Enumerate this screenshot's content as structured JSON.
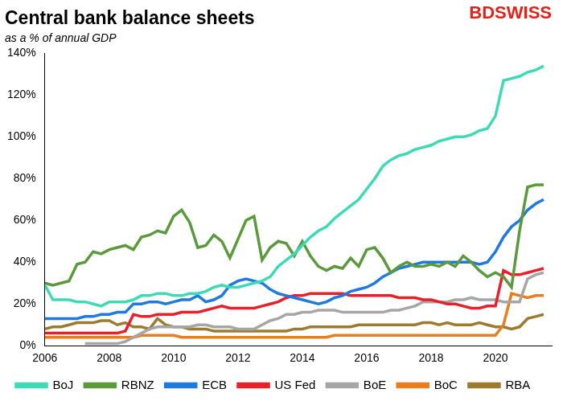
{
  "chart_data": {
    "type": "line",
    "title": "Central bank balance sheets",
    "subtitle": "as a % of annual GDP",
    "annotations": [
      "BDSWISS"
    ],
    "x": [
      2006,
      2006.25,
      2006.5,
      2006.75,
      2007,
      2007.25,
      2007.5,
      2007.75,
      2008,
      2008.25,
      2008.5,
      2008.75,
      2009,
      2009.25,
      2009.5,
      2009.75,
      2010,
      2010.25,
      2010.5,
      2010.75,
      2011,
      2011.25,
      2011.5,
      2011.75,
      2012,
      2012.25,
      2012.5,
      2012.75,
      2013,
      2013.25,
      2013.5,
      2013.75,
      2014,
      2014.25,
      2014.5,
      2014.75,
      2015,
      2015.25,
      2015.5,
      2015.75,
      2016,
      2016.25,
      2016.5,
      2016.75,
      2017,
      2017.25,
      2017.5,
      2017.75,
      2018,
      2018.25,
      2018.5,
      2018.75,
      2019,
      2019.25,
      2019.5,
      2019.75,
      2020,
      2020.25,
      2020.5,
      2020.75,
      2021,
      2021.25,
      2021.5
    ],
    "xlim": [
      2006,
      2021.75
    ],
    "xticks": [
      2006,
      2008,
      2010,
      2012,
      2014,
      2016,
      2018,
      2020
    ],
    "ylim": [
      0,
      140
    ],
    "yticks": [
      {
        "value": 0,
        "label": "0%"
      },
      {
        "value": 20,
        "label": "20%"
      },
      {
        "value": 40,
        "label": "40%"
      },
      {
        "value": 60,
        "label": "60%"
      },
      {
        "value": 80,
        "label": "80%"
      },
      {
        "value": 100,
        "label": "100%"
      },
      {
        "value": 120,
        "label": "120%"
      },
      {
        "value": 140,
        "label": "140%"
      }
    ],
    "grid": false,
    "legend": "bottom",
    "series": [
      {
        "name": "BoJ",
        "color": "#3ddbb5",
        "values": [
          29,
          22,
          22,
          22,
          21,
          21,
          20,
          19,
          21,
          21,
          21,
          22,
          24,
          24,
          25,
          25,
          24,
          24,
          25,
          25,
          26,
          28,
          29,
          28,
          28,
          29,
          30,
          31,
          33,
          38,
          41,
          44,
          48,
          52,
          55,
          57,
          61,
          64,
          67,
          70,
          75,
          80,
          86,
          89,
          91,
          92,
          94,
          95,
          96,
          98,
          99,
          100,
          100,
          101,
          103,
          104,
          110,
          127,
          128,
          129,
          131,
          132,
          134
        ]
      },
      {
        "name": "RBNZ",
        "color": "#5b9a3c",
        "values": [
          30,
          29,
          30,
          31,
          39,
          40,
          45,
          44,
          46,
          47,
          48,
          46,
          52,
          53,
          55,
          54,
          62,
          65,
          59,
          47,
          48,
          53,
          50,
          42,
          51,
          60,
          62,
          41,
          47,
          50,
          49,
          43,
          50,
          43,
          38,
          36,
          38,
          37,
          42,
          38,
          46,
          47,
          42,
          35,
          38,
          40,
          38,
          38,
          39,
          38,
          40,
          38,
          43,
          40,
          36,
          33,
          35,
          33,
          28,
          55,
          76,
          77,
          77
        ]
      },
      {
        "name": "ECB",
        "color": "#1f7ae0",
        "values": [
          13,
          13,
          13,
          13,
          13,
          14,
          14,
          15,
          15,
          16,
          16,
          20,
          20,
          21,
          21,
          20,
          21,
          22,
          22,
          24,
          21,
          22,
          24,
          29,
          31,
          32,
          31,
          30,
          27,
          25,
          24,
          23,
          22,
          21,
          20,
          21,
          23,
          24,
          26,
          27,
          28,
          30,
          33,
          35,
          37,
          38,
          39,
          40,
          40,
          40,
          40,
          40,
          40,
          40,
          39,
          40,
          45,
          52,
          57,
          60,
          65,
          68,
          70
        ]
      },
      {
        "name": "US Fed",
        "color": "#e8202a",
        "values": [
          6,
          6,
          6,
          6,
          6,
          6,
          6,
          6,
          6,
          6,
          7,
          15,
          14,
          14,
          15,
          15,
          15,
          16,
          16,
          16,
          17,
          18,
          19,
          18,
          18,
          18,
          18,
          19,
          20,
          21,
          23,
          24,
          24,
          25,
          25,
          25,
          25,
          25,
          24,
          24,
          24,
          24,
          24,
          24,
          23,
          23,
          23,
          22,
          22,
          21,
          20,
          20,
          19,
          18,
          18,
          19,
          19,
          36,
          34,
          34,
          35,
          36,
          37
        ]
      },
      {
        "name": "BoE",
        "color": "#a6a6a6",
        "values": [
          null,
          null,
          null,
          null,
          null,
          1,
          1,
          1,
          1,
          1,
          2,
          4,
          6,
          8,
          9,
          9,
          9,
          9,
          9,
          10,
          10,
          9,
          9,
          9,
          8,
          8,
          8,
          10,
          12,
          13,
          15,
          15,
          16,
          16,
          17,
          17,
          17,
          16,
          16,
          16,
          16,
          16,
          16,
          17,
          17,
          18,
          19,
          21,
          21,
          21,
          21,
          22,
          22,
          23,
          22,
          22,
          22,
          21,
          21,
          21,
          32,
          34,
          35
        ]
      },
      {
        "name": "BoC",
        "color": "#ea7d1e",
        "values": [
          4,
          4,
          4,
          4,
          4,
          4,
          4,
          4,
          4,
          4,
          4,
          4,
          5,
          5,
          5,
          5,
          5,
          4,
          4,
          4,
          4,
          4,
          4,
          4,
          4,
          4,
          4,
          4,
          4,
          4,
          4,
          4,
          4,
          4,
          4,
          4,
          5,
          5,
          5,
          5,
          5,
          5,
          5,
          5,
          5,
          5,
          5,
          5,
          5,
          5,
          5,
          5,
          5,
          5,
          5,
          5,
          5,
          10,
          25,
          24,
          23,
          24,
          24
        ]
      },
      {
        "name": "RBA",
        "color": "#9c7b2e",
        "values": [
          8,
          9,
          9,
          10,
          11,
          11,
          11,
          12,
          12,
          10,
          11,
          9,
          9,
          8,
          13,
          10,
          9,
          9,
          8,
          8,
          8,
          7,
          7,
          7,
          7,
          7,
          7,
          7,
          7,
          7,
          7,
          8,
          8,
          9,
          9,
          9,
          9,
          9,
          9,
          10,
          10,
          10,
          10,
          10,
          10,
          10,
          10,
          11,
          11,
          10,
          11,
          10,
          10,
          10,
          11,
          10,
          9,
          9,
          8,
          9,
          13,
          14,
          15
        ]
      }
    ]
  }
}
